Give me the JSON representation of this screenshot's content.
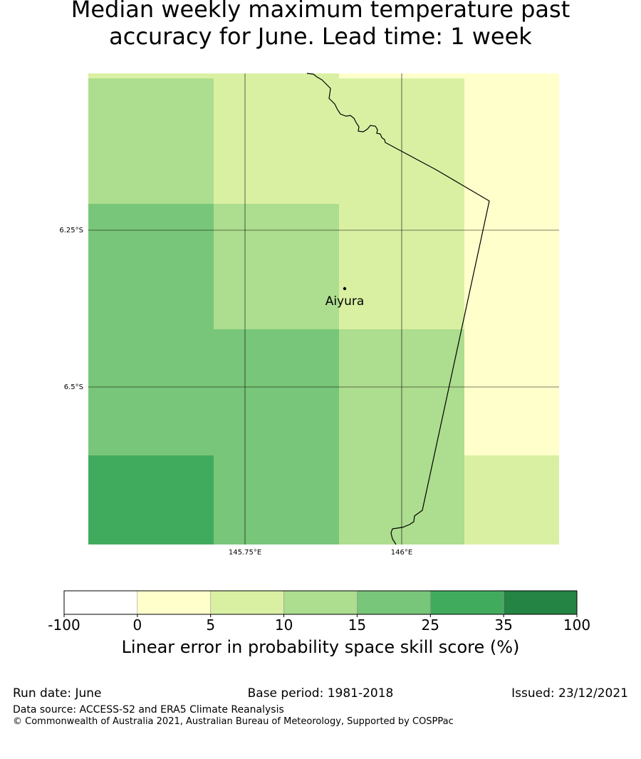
{
  "title": {
    "line1": "Median weekly maximum temperature past",
    "line2": "accuracy for June. Lead time: 1 week"
  },
  "map": {
    "lat_labels": [
      "6.25°S",
      "6.5°S"
    ],
    "lon_labels": [
      "145.75°E",
      "146°E"
    ],
    "place": {
      "name": "Aiyura"
    },
    "grid_cells": [
      {
        "row": 0,
        "col": 0,
        "category": "10-15"
      },
      {
        "row": 0,
        "col": 1,
        "category": "5-10"
      },
      {
        "row": 0,
        "col": 2,
        "category": "5-10"
      },
      {
        "row": 0,
        "col": 3,
        "category": "0-5"
      },
      {
        "row": 1,
        "col": 0,
        "category": "15-25"
      },
      {
        "row": 1,
        "col": 1,
        "category": "10-15"
      },
      {
        "row": 1,
        "col": 2,
        "category": "5-10"
      },
      {
        "row": 1,
        "col": 3,
        "category": "0-5"
      },
      {
        "row": 2,
        "col": 0,
        "category": "15-25"
      },
      {
        "row": 2,
        "col": 1,
        "category": "15-25"
      },
      {
        "row": 2,
        "col": 2,
        "category": "10-15"
      },
      {
        "row": 2,
        "col": 3,
        "category": "0-5"
      },
      {
        "row": 3,
        "col": 0,
        "category": "25-35"
      },
      {
        "row": 3,
        "col": 1,
        "category": "15-25"
      },
      {
        "row": 3,
        "col": 2,
        "category": "10-15"
      },
      {
        "row": 3,
        "col": 3,
        "category": "5-10"
      }
    ]
  },
  "colorbar": {
    "ticks": [
      "-100",
      "0",
      "5",
      "10",
      "15",
      "25",
      "35",
      "100"
    ],
    "colors": [
      "#ffffff",
      "#ffffcc",
      "#d9f0a3",
      "#addd8e",
      "#78c679",
      "#41ab5d",
      "#238443"
    ],
    "label": "Linear error in probability space skill score (%)"
  },
  "footer": {
    "run_date": "Run date: June",
    "base_period": "Base period: 1981-2018",
    "issued": "Issued: 23/12/2021",
    "data_source": "Data source: ACCESS-S2 and ERA5 Climate Reanalysis",
    "copyright": "© Commonwealth of Australia 2021, Australian Bureau of Meteorology, Supported by COSPPac"
  }
}
